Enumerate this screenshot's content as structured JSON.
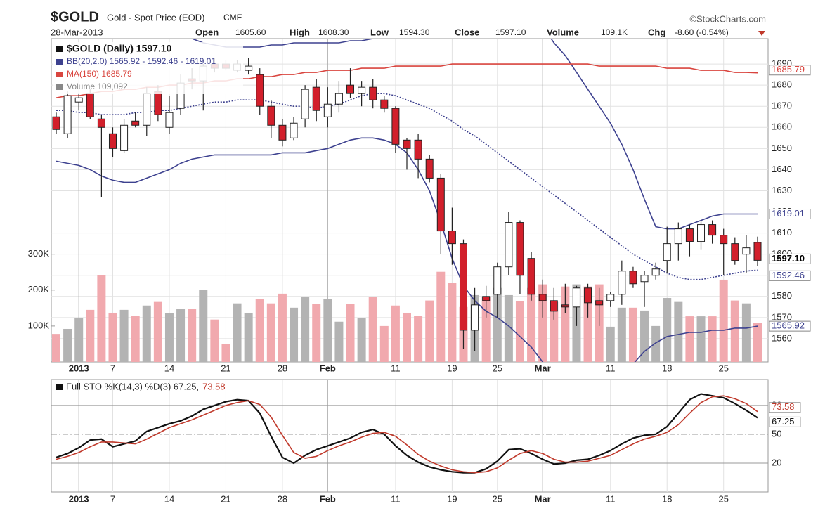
{
  "header": {
    "symbol": "$GOLD",
    "description": "Gold - Spot Price (EOD)",
    "exchange": "CME",
    "copyright": "©StockCharts.com",
    "date": "28-Mar-2013",
    "stats": [
      {
        "label": "Open",
        "value": "1605.60"
      },
      {
        "label": "High",
        "value": "1608.30"
      },
      {
        "label": "Low",
        "value": "1594.30"
      },
      {
        "label": "Close",
        "value": "1597.10"
      },
      {
        "label": "Volume",
        "value": "109.1K"
      },
      {
        "label": "Chg",
        "value": "-8.60 (-0.54%)"
      }
    ]
  },
  "chart_data": [
    {
      "type": "candlestick",
      "categories": [
        null,
        null,
        "2013",
        null,
        null,
        "7",
        null,
        null,
        null,
        null,
        "14",
        null,
        null,
        null,
        null,
        "21",
        null,
        null,
        null,
        null,
        "28",
        null,
        null,
        null,
        "Feb",
        null,
        null,
        null,
        null,
        null,
        "11",
        null,
        null,
        null,
        null,
        "19",
        null,
        null,
        null,
        "25",
        null,
        null,
        null,
        "Mar",
        null,
        null,
        null,
        null,
        null,
        "11",
        null,
        null,
        null,
        null,
        "18",
        null,
        null,
        null,
        null,
        "25",
        null,
        null,
        null
      ],
      "legend": "$GOLD (Daily) 1597.10",
      "open": [
        1665,
        1657,
        1672,
        1676,
        1664,
        1657,
        1649,
        1663,
        1661,
        1677,
        1660,
        1669,
        1683,
        1682,
        1690,
        1690,
        1687,
        1687,
        1685,
        1670,
        1661,
        1655,
        1664,
        1679,
        1665,
        1671,
        1680,
        1676,
        1679,
        1673,
        1669,
        1654,
        1654,
        1645,
        1636,
        1611,
        1605,
        1564,
        1580,
        1581,
        1594,
        1615,
        1598,
        1581,
        1578,
        1576,
        1575,
        1584,
        1578,
        1578,
        1581,
        1592,
        1587,
        1590,
        1597,
        1605,
        1612,
        1606,
        1614,
        1609,
        1605,
        1600,
        1605.6
      ],
      "high": [
        1667,
        1677,
        1676,
        1678,
        1666,
        1660,
        1664,
        1667,
        1679,
        1680,
        1675,
        1685,
        1688,
        1690,
        1693,
        1692,
        1692,
        1693,
        1688,
        1673,
        1664,
        1665,
        1680,
        1683,
        1679,
        1682,
        1688,
        1682,
        1683,
        1675,
        1670,
        1655,
        1657,
        1647,
        1638,
        1622,
        1607,
        1584,
        1585,
        1596,
        1620,
        1616,
        1601,
        1588,
        1584,
        1586,
        1585,
        1586,
        1584,
        1582,
        1597,
        1594,
        1592,
        1596,
        1613,
        1615,
        1614,
        1616,
        1616,
        1612,
        1608,
        1609,
        1608.3
      ],
      "low": [
        1657,
        1655,
        1668,
        1664,
        1627,
        1646,
        1648,
        1660,
        1656,
        1663,
        1657,
        1666,
        1678,
        1668,
        1686,
        1687,
        1686,
        1685,
        1666,
        1655,
        1651,
        1654,
        1660,
        1663,
        1660,
        1667,
        1674,
        1670,
        1669,
        1667,
        1648,
        1640,
        1636,
        1634,
        1600,
        1595,
        1555,
        1554,
        1570,
        1570,
        1590,
        1581,
        1578,
        1570,
        1569,
        1572,
        1566,
        1570,
        1566,
        1575,
        1576,
        1584,
        1575,
        1588,
        1591,
        1597,
        1599,
        1602,
        1605,
        1590,
        1595,
        1591,
        1594.3
      ],
      "close": [
        1659,
        1675,
        1674,
        1665,
        1660,
        1650,
        1661,
        1661,
        1676,
        1666,
        1667,
        1681,
        1682,
        1689,
        1688,
        1688,
        1690,
        1689,
        1670,
        1661,
        1654,
        1662,
        1678,
        1668,
        1671,
        1676,
        1676,
        1679,
        1673,
        1669,
        1652,
        1650,
        1645,
        1636,
        1611,
        1605,
        1564,
        1576,
        1578,
        1594,
        1615,
        1590,
        1581,
        1578,
        1573,
        1575,
        1584,
        1577,
        1576,
        1581,
        1592,
        1586,
        1590,
        1593,
        1605,
        1612,
        1606,
        1614,
        1609,
        1605,
        1597,
        1603,
        1597.1
      ],
      "close_label": "1597.10",
      "colors": {
        "up": "#ffffff",
        "down": "#d21f2b",
        "outline": "#222222"
      },
      "ylim": [
        1549,
        1702
      ],
      "yticks": [
        1560,
        1570,
        1580,
        1590,
        1600,
        1610,
        1620,
        1630,
        1640,
        1650,
        1660,
        1670,
        1680,
        1690
      ],
      "y2lim": [
        0,
        900000
      ],
      "y2ticks": [
        {
          "value": 100000,
          "label": "100K"
        },
        {
          "value": 200000,
          "label": "200K"
        },
        {
          "value": 300000,
          "label": "300K"
        }
      ],
      "grid": true,
      "overlays": [
        {
          "name": "BB(20,2.0) 1565.92 - 1592.46 - 1619.01",
          "color": "#3d418f",
          "upper": [
            1707,
            1708,
            1708,
            1709,
            1710,
            1711,
            1712,
            1711,
            1709,
            1706,
            1703,
            1704,
            1702,
            1700,
            1699,
            1698,
            1698,
            1698,
            1698,
            1699,
            1699,
            1700,
            1700,
            1700,
            1700,
            1700,
            1701,
            1701,
            1702,
            1702,
            1703,
            1704,
            1706,
            1708,
            1714,
            1720,
            1727,
            1733,
            1736,
            1738,
            1740,
            1722,
            1714,
            1708,
            1700,
            1694,
            1686,
            1678,
            1670,
            1662,
            1652,
            1640,
            1626,
            1613,
            1612,
            1612,
            1614,
            1616,
            1618,
            1619,
            1619,
            1619,
            1619.01
          ],
          "middle": [
            1668,
            1668,
            1667,
            1667,
            1666,
            1666,
            1666,
            1667,
            1667,
            1668,
            1668,
            1669,
            1670,
            1671,
            1672,
            1672,
            1673,
            1673,
            1673,
            1672,
            1671,
            1670,
            1670,
            1669,
            1670,
            1671,
            1673,
            1675,
            1676,
            1676,
            1675,
            1673,
            1671,
            1669,
            1666,
            1663,
            1659,
            1656,
            1652,
            1648,
            1644,
            1640,
            1636,
            1632,
            1628,
            1624,
            1620,
            1616,
            1612,
            1608,
            1604,
            1600,
            1597,
            1594,
            1591,
            1589,
            1588,
            1588,
            1589,
            1590,
            1591,
            1592,
            1592.46
          ],
          "lower": [
            1644,
            1643,
            1642,
            1640,
            1637,
            1635,
            1634,
            1634,
            1636,
            1638,
            1640,
            1643,
            1645,
            1646,
            1647,
            1647,
            1647,
            1647,
            1647,
            1647,
            1648,
            1648,
            1648,
            1649,
            1650,
            1652,
            1654,
            1655,
            1655,
            1654,
            1652,
            1648,
            1640,
            1630,
            1615,
            1598,
            1585,
            1578,
            1573,
            1570,
            1566,
            1561,
            1556,
            1549,
            1543,
            1538,
            1535,
            1534,
            1535,
            1538,
            1542,
            1548,
            1554,
            1558,
            1561,
            1562,
            1563,
            1563,
            1564,
            1564,
            1565,
            1565,
            1565.92
          ]
        },
        {
          "name": "MA(150) 1685.79",
          "color": "#d9453f",
          "values": [
            1674,
            1675,
            1675,
            1676,
            1677,
            1677,
            1678,
            1678,
            1679,
            1679,
            1680,
            1680,
            1681,
            1681,
            1682,
            1682,
            1683,
            1683,
            1684,
            1684,
            1685,
            1685,
            1686,
            1686,
            1687,
            1687,
            1687,
            1688,
            1688,
            1688,
            1689,
            1689,
            1689,
            1689,
            1689,
            1690,
            1690,
            1690,
            1690,
            1690,
            1690,
            1690,
            1690,
            1690,
            1690,
            1690,
            1690,
            1690,
            1689,
            1689,
            1689,
            1689,
            1689,
            1689,
            1688,
            1688,
            1688,
            1687,
            1687,
            1687,
            1686,
            1686,
            1685.79
          ]
        }
      ],
      "volume": {
        "name": "Volume 109,092",
        "axis": "y2",
        "colors": {
          "up": "#b3b3b3",
          "down": "#f1a9ae"
        },
        "values": [
          78000,
          92000,
          122000,
          145000,
          241000,
          137000,
          145000,
          129000,
          157000,
          167000,
          135000,
          147000,
          147000,
          200000,
          118000,
          49000,
          163000,
          137000,
          175000,
          163000,
          190000,
          151000,
          180000,
          161000,
          176000,
          112000,
          161000,
          122000,
          180000,
          100000,
          157000,
          137000,
          129000,
          171000,
          251000,
          220000,
          153000,
          186000,
          180000,
          206000,
          186000,
          169000,
          206000,
          216000,
          167000,
          210000,
          216000,
          210000,
          216000,
          98000,
          151000,
          151000,
          143000,
          100000,
          178000,
          167000,
          127000,
          127000,
          127000,
          229000,
          171000,
          163000,
          109092
        ]
      }
    },
    {
      "type": "line",
      "title": "Full STO %K(14,3) %D(3) 67.25,",
      "ylim": [
        -10,
        107
      ],
      "yticks": [
        20,
        50,
        80
      ],
      "tick_styles": [
        "solid",
        "dashdot",
        "solid"
      ],
      "series": [
        {
          "color": "#111111",
          "values": [
            26,
            30,
            36,
            44,
            45,
            37,
            40,
            43,
            53,
            57,
            61,
            64,
            69,
            76,
            80,
            84,
            86,
            85,
            72,
            48,
            26,
            20,
            28,
            34,
            38,
            42,
            46,
            52,
            55,
            50,
            38,
            28,
            21,
            16,
            13,
            11,
            10,
            10,
            14,
            22,
            34,
            35,
            30,
            24,
            19,
            20,
            23,
            24,
            28,
            33,
            40,
            46,
            49,
            50,
            58,
            72,
            86,
            92,
            90,
            88,
            82,
            75,
            67.25
          ]
        },
        {
          "color": "#c0392b",
          "values": [
            24,
            27,
            31,
            37,
            42,
            42,
            41,
            40,
            45,
            51,
            57,
            61,
            65,
            70,
            75,
            80,
            83,
            85,
            81,
            68,
            49,
            31,
            25,
            27,
            33,
            38,
            42,
            47,
            51,
            52,
            48,
            39,
            29,
            22,
            17,
            13,
            11,
            10,
            11,
            15,
            23,
            30,
            33,
            30,
            24,
            21,
            21,
            22,
            25,
            28,
            34,
            40,
            45,
            48,
            52,
            60,
            72,
            83,
            89,
            90,
            87,
            82,
            73.58
          ]
        }
      ]
    }
  ]
}
